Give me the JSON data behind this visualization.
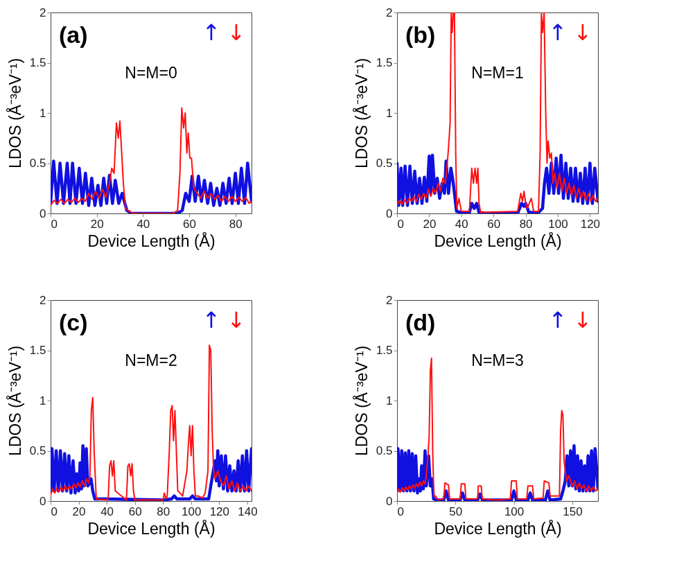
{
  "chart_data": [
    {
      "type": "line",
      "annotations": [
        "(a)",
        "N=M=0"
      ],
      "xlabel": "Device Length (Å)",
      "ylabel": "LDOS (Å⁻³eV⁻¹)",
      "xlim": [
        0,
        87
      ],
      "xticks": [
        0,
        20,
        40,
        60,
        80
      ],
      "ylim": [
        0,
        2
      ],
      "yticks": [
        0,
        0.5,
        1,
        1.5,
        2
      ],
      "legend": "top right",
      "series": [
        {
          "name": "↑",
          "color": "#1010e0",
          "x": [
            0,
            1.3,
            2.8,
            4.1,
            5.6,
            7.2,
            8.4,
            9.5,
            11,
            12.4,
            13.8,
            15.1,
            16.5,
            17.8,
            19.2,
            20.5,
            21.8,
            23,
            24.3,
            25.5,
            26.8,
            28,
            29.5,
            31,
            33,
            35,
            55,
            57,
            58.5,
            60,
            61.3,
            62.6,
            64,
            65.3,
            66.6,
            68,
            69.3,
            70.6,
            72,
            73.3,
            74.6,
            76,
            77.3,
            78.6,
            80,
            81.3,
            82.6,
            84,
            85.3,
            87
          ],
          "values": [
            0.1,
            0.52,
            0.1,
            0.5,
            0.1,
            0.5,
            0.1,
            0.5,
            0.1,
            0.45,
            0.1,
            0.4,
            0.08,
            0.35,
            0.08,
            0.28,
            0.08,
            0.35,
            0.1,
            0.38,
            0.1,
            0.33,
            0.1,
            0.2,
            0.03,
            0,
            0,
            0.03,
            0.2,
            0.12,
            0.37,
            0.12,
            0.37,
            0.12,
            0.33,
            0.1,
            0.3,
            0.08,
            0.25,
            0.08,
            0.3,
            0.1,
            0.35,
            0.1,
            0.4,
            0.1,
            0.45,
            0.1,
            0.5,
            0.12
          ]
        },
        {
          "name": "↓",
          "color": "#ff1010",
          "x": [
            0,
            1.5,
            3,
            4.5,
            6,
            7.5,
            9,
            10.5,
            12,
            13.5,
            15,
            16.5,
            18,
            19.5,
            21,
            22.5,
            24,
            25.5,
            26.5,
            27.5,
            28.5,
            29.3,
            30,
            30.8,
            31.5,
            32.5,
            34,
            36,
            53,
            55,
            56,
            56.8,
            57.6,
            58.3,
            59,
            59.6,
            60.3,
            61,
            62,
            63.5,
            65,
            66.5,
            68,
            69.5,
            71,
            72.5,
            74,
            75.5,
            77,
            78.5,
            80,
            81.5,
            83,
            84.5,
            86,
            87
          ],
          "values": [
            0.08,
            0.13,
            0.1,
            0.14,
            0.1,
            0.14,
            0.11,
            0.15,
            0.11,
            0.15,
            0.12,
            0.2,
            0.14,
            0.22,
            0.15,
            0.24,
            0.16,
            0.3,
            0.45,
            0.4,
            0.9,
            0.75,
            0.92,
            0.6,
            0.3,
            0.05,
            0.02,
            0,
            0,
            0.03,
            0.4,
            1.05,
            0.85,
            1.0,
            0.6,
            0.8,
            0.55,
            0.55,
            0.25,
            0.2,
            0.15,
            0.22,
            0.15,
            0.2,
            0.14,
            0.18,
            0.12,
            0.17,
            0.12,
            0.17,
            0.12,
            0.16,
            0.12,
            0.16,
            0.1,
            0.12
          ]
        }
      ]
    },
    {
      "type": "line",
      "annotations": [
        "(b)",
        "N=M=1"
      ],
      "xlabel": "Device Length (Å)",
      "ylabel": "LDOS (Å⁻³eV⁻¹)",
      "xlim": [
        0,
        125
      ],
      "xticks": [
        0,
        20,
        40,
        60,
        80,
        100,
        120
      ],
      "ylim": [
        0,
        2
      ],
      "yticks": [
        0,
        0.5,
        1,
        1.5,
        2
      ],
      "legend": "top right",
      "series": [
        {
          "name": "↑",
          "color": "#1010e0",
          "x": [
            0,
            1,
            2.5,
            3.5,
            5,
            6.5,
            8,
            9.5,
            11,
            12.5,
            14,
            15.5,
            17,
            18.5,
            20,
            21,
            22,
            23.5,
            25,
            26.5,
            28,
            29.5,
            30.5,
            32,
            33.5,
            35,
            37,
            40,
            45,
            46.5,
            48,
            49.5,
            51,
            55,
            75,
            77.5,
            79,
            80,
            82,
            88,
            90.5,
            91.7,
            93,
            94.5,
            96,
            97.5,
            99,
            100.5,
            102,
            103.5,
            105,
            106.5,
            108,
            109.5,
            111,
            112.5,
            114,
            115.5,
            117,
            118.5,
            120,
            121.5,
            123,
            125
          ],
          "values": [
            0.5,
            0.08,
            0.45,
            0.08,
            0.47,
            0.08,
            0.47,
            0.1,
            0.42,
            0.1,
            0.35,
            0.1,
            0.36,
            0.12,
            0.57,
            0.2,
            0.58,
            0.2,
            0.35,
            0.15,
            0.3,
            0.2,
            0.52,
            0.2,
            0.45,
            0.3,
            0.02,
            0.01,
            0.01,
            0.1,
            0.05,
            0.1,
            0.01,
            0,
            0,
            0.1,
            0.07,
            0.1,
            0.01,
            0.01,
            0.05,
            0.3,
            0.45,
            0.2,
            0.5,
            0.2,
            0.55,
            0.2,
            0.58,
            0.15,
            0.5,
            0.15,
            0.45,
            0.12,
            0.45,
            0.12,
            0.4,
            0.1,
            0.45,
            0.1,
            0.5,
            0.1,
            0.45,
            0.12
          ]
        },
        {
          "name": "↓",
          "color": "#ff1010",
          "x": [
            0,
            1.5,
            3,
            4.5,
            6,
            7.5,
            9,
            10.5,
            12,
            13.5,
            15,
            16.5,
            18,
            19.5,
            21,
            22.5,
            24,
            25.5,
            27,
            28.5,
            30,
            31,
            32,
            33,
            33.7,
            34.3,
            35,
            35.7,
            36.5,
            37.2,
            38.5,
            40,
            45,
            46.5,
            47.5,
            48.5,
            49.5,
            50.3,
            51,
            52,
            75,
            77,
            78,
            79,
            80,
            81,
            83.5,
            85,
            88,
            89,
            89.8,
            90.5,
            91.5,
            92.5,
            93.3,
            94,
            95,
            96,
            97,
            98,
            99.5,
            101,
            102.5,
            104,
            105.5,
            107,
            108.5,
            110,
            111.5,
            113,
            114.5,
            116,
            117.5,
            119,
            120.5,
            122,
            123.5,
            125
          ],
          "values": [
            0.08,
            0.13,
            0.09,
            0.14,
            0.1,
            0.15,
            0.12,
            0.17,
            0.12,
            0.19,
            0.14,
            0.2,
            0.15,
            0.24,
            0.17,
            0.25,
            0.2,
            0.3,
            0.22,
            0.35,
            0.3,
            0.45,
            0.65,
            0.9,
            2,
            1.8,
            2,
            2,
            0.6,
            0.05,
            0.15,
            0.02,
            0.02,
            0.45,
            0.3,
            0.45,
            0.3,
            0.45,
            0.1,
            0.01,
            0.02,
            0.2,
            0.12,
            0.22,
            0.1,
            0.05,
            0.15,
            0.02,
            0.02,
            0.6,
            2,
            1.8,
            2,
            1,
            0.5,
            0.72,
            0.55,
            0.6,
            0.3,
            0.4,
            0.25,
            0.4,
            0.22,
            0.35,
            0.2,
            0.3,
            0.18,
            0.28,
            0.15,
            0.25,
            0.15,
            0.22,
            0.13,
            0.2,
            0.12,
            0.18,
            0.12,
            0.15
          ]
        }
      ]
    },
    {
      "type": "line",
      "annotations": [
        "(c)",
        "N=M=2"
      ],
      "xlabel": "Device Length (Å)",
      "ylabel": "LDOS (Å⁻³eV⁻¹)",
      "xlim": [
        0,
        143
      ],
      "xticks": [
        0,
        20,
        40,
        60,
        80,
        100,
        120,
        140
      ],
      "ylim": [
        0,
        2
      ],
      "yticks": [
        0,
        0.5,
        1,
        1.5,
        2
      ],
      "legend": "top right",
      "series": [
        {
          "name": "↑",
          "color": "#1010e0",
          "x": [
            0,
            1,
            2.5,
            4,
            5.5,
            7,
            8.5,
            10,
            11.5,
            13,
            14.5,
            16,
            17.5,
            18.6,
            20,
            21,
            22,
            23,
            24,
            25.4,
            26.5,
            28.8,
            30,
            31.5,
            40,
            80,
            86,
            88,
            90,
            99,
            101,
            103,
            112.5,
            114,
            117,
            118,
            119,
            120,
            121.5,
            123,
            124.5,
            126,
            127.5,
            129,
            130.5,
            132,
            133.5,
            135,
            136.5,
            138,
            139.5,
            141,
            143
          ],
          "values": [
            0.1,
            0.52,
            0.1,
            0.5,
            0.1,
            0.5,
            0.1,
            0.47,
            0.1,
            0.45,
            0.08,
            0.4,
            0.08,
            0.27,
            0.1,
            0.38,
            0.12,
            0.55,
            0.15,
            0.52,
            0.15,
            0.22,
            0.1,
            0.02,
            0.02,
            0.01,
            0.02,
            0.05,
            0.02,
            0.02,
            0.05,
            0.02,
            0.02,
            0.15,
            0.4,
            0.2,
            0.5,
            0.15,
            0.45,
            0.12,
            0.45,
            0.1,
            0.35,
            0.1,
            0.3,
            0.1,
            0.4,
            0.1,
            0.45,
            0.1,
            0.5,
            0.1,
            0.52
          ]
        },
        {
          "name": "↓",
          "color": "#ff1010",
          "x": [
            0,
            1.5,
            3,
            4.5,
            6,
            7.5,
            9,
            10.5,
            12,
            13.5,
            15,
            16.5,
            18,
            19.5,
            21,
            22.5,
            24,
            25.5,
            27,
            28,
            29,
            30,
            31,
            32.5,
            40,
            41,
            42,
            43,
            44,
            45,
            46,
            54,
            55,
            56,
            57,
            58,
            59,
            60,
            80,
            81,
            82,
            83,
            84.5,
            85.5,
            86.5,
            87.5,
            88.5,
            89.5,
            90.5,
            92,
            94,
            97,
            98,
            99,
            100,
            101,
            102,
            103,
            105,
            108,
            110,
            112,
            113,
            114,
            115,
            116,
            117,
            119,
            121,
            123,
            125,
            127,
            129,
            131,
            133,
            135,
            137,
            139,
            141,
            143
          ],
          "values": [
            0.06,
            0.12,
            0.08,
            0.13,
            0.09,
            0.14,
            0.1,
            0.15,
            0.11,
            0.15,
            0.12,
            0.17,
            0.13,
            0.18,
            0.14,
            0.2,
            0.15,
            0.22,
            0.18,
            0.25,
            0.9,
            1.03,
            0.5,
            0.02,
            0.01,
            0.03,
            0.35,
            0.4,
            0.25,
            0.4,
            0.1,
            0.01,
            0.35,
            0.37,
            0.25,
            0.37,
            0.1,
            0.01,
            0.01,
            0.08,
            0.02,
            0.05,
            0.5,
            0.9,
            0.95,
            0.6,
            0.9,
            0.5,
            0.1,
            0.08,
            0.05,
            0.3,
            0.55,
            0.75,
            0.45,
            0.75,
            0.3,
            0.05,
            0.05,
            0.03,
            0.08,
            0.3,
            1.55,
            1.5,
            0.7,
            0.3,
            0.22,
            0.3,
            0.2,
            0.15,
            0.25,
            0.12,
            0.2,
            0.1,
            0.18,
            0.1,
            0.15,
            0.1,
            0.15,
            0.1
          ]
        }
      ]
    },
    {
      "type": "line",
      "annotations": [
        "(d)",
        "N=M=3"
      ],
      "xlabel": "Device Length (Å)",
      "ylabel": "LDOS (Å⁻³eV⁻¹)",
      "xlim": [
        0,
        172
      ],
      "xticks": [
        0,
        50,
        100,
        150
      ],
      "ylim": [
        0,
        2
      ],
      "yticks": [
        0,
        0.5,
        1,
        1.5,
        2
      ],
      "legend": "top right",
      "series": [
        {
          "name": "↑",
          "color": "#1010e0",
          "x": [
            0,
            0.8,
            2.5,
            4,
            5.5,
            7,
            8.5,
            10,
            11.5,
            13,
            14.5,
            16,
            17.5,
            18.5,
            20,
            21,
            22.5,
            24,
            25,
            27,
            28.5,
            30,
            31.3,
            35,
            40,
            42,
            44,
            54,
            56,
            58,
            69,
            71,
            73,
            98,
            100,
            102,
            112,
            114,
            116,
            127,
            129,
            131,
            140,
            142,
            144,
            145.5,
            147,
            148.5,
            150,
            151.5,
            153,
            154.5,
            156,
            157.5,
            159,
            160.5,
            162,
            163.5,
            165,
            166.5,
            168,
            169.5,
            172
          ],
          "values": [
            0.12,
            0.52,
            0.1,
            0.5,
            0.1,
            0.48,
            0.1,
            0.5,
            0.1,
            0.47,
            0.1,
            0.45,
            0.08,
            0.22,
            0.1,
            0.35,
            0.12,
            0.5,
            0.15,
            0.45,
            0.15,
            0.22,
            0.02,
            0.01,
            0.01,
            0.1,
            0.01,
            0.01,
            0.08,
            0.01,
            0.01,
            0.07,
            0.01,
            0.01,
            0.1,
            0.01,
            0.01,
            0.08,
            0.01,
            0.01,
            0.1,
            0.01,
            0.02,
            0.1,
            0.2,
            0.45,
            0.15,
            0.5,
            0.15,
            0.55,
            0.12,
            0.45,
            0.1,
            0.4,
            0.1,
            0.35,
            0.1,
            0.45,
            0.1,
            0.5,
            0.1,
            0.52,
            0.12
          ]
        },
        {
          "name": "↓",
          "color": "#ff1010",
          "x": [
            0,
            1.5,
            3,
            4.5,
            6,
            7.5,
            9,
            10.5,
            12,
            13.5,
            15,
            16.5,
            18,
            19.5,
            21,
            22.5,
            24,
            25,
            26.5,
            27.5,
            28.5,
            29.5,
            30.5,
            31.5,
            33,
            35,
            40,
            41,
            44,
            45,
            54,
            55,
            58,
            59,
            69,
            69.5,
            72,
            73,
            85,
            97,
            98,
            102,
            103,
            111,
            112,
            116,
            117,
            125,
            126,
            130,
            131,
            139,
            140,
            141,
            142,
            143,
            145,
            147,
            150,
            152,
            154,
            156,
            158,
            160,
            162,
            164,
            166,
            168,
            170,
            172
          ],
          "values": [
            0.08,
            0.12,
            0.09,
            0.13,
            0.1,
            0.14,
            0.11,
            0.15,
            0.12,
            0.16,
            0.13,
            0.17,
            0.14,
            0.19,
            0.15,
            0.2,
            0.17,
            0.25,
            0.45,
            0.65,
            1.3,
            1.42,
            0.5,
            0.05,
            0.05,
            0.01,
            0.02,
            0.18,
            0.16,
            0.02,
            0.02,
            0.17,
            0.17,
            0.02,
            0.02,
            0.15,
            0.15,
            0.02,
            0.01,
            0.02,
            0.2,
            0.2,
            0.02,
            0.02,
            0.15,
            0.15,
            0.02,
            0.03,
            0.2,
            0.18,
            0.05,
            0.05,
            0.7,
            0.9,
            0.85,
            0.4,
            0.2,
            0.25,
            0.15,
            0.2,
            0.12,
            0.18,
            0.12,
            0.16,
            0.1,
            0.15,
            0.1,
            0.14,
            0.1,
            0.12
          ]
        }
      ]
    }
  ]
}
